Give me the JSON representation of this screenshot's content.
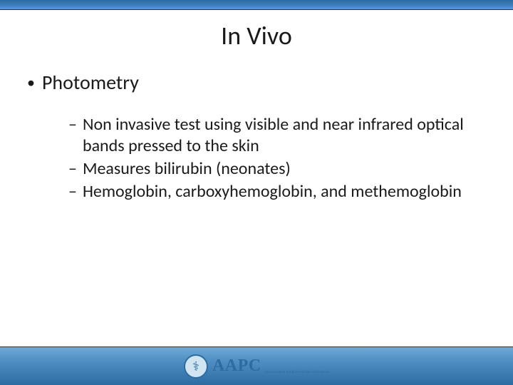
{
  "colors": {
    "bar_gradient_top": "#2d6ca2",
    "bar_gradient_bottom": "#5a9bd4",
    "text": "#1a1a1a",
    "logo_primary": "#2d6ca2",
    "background": "#ffffff"
  },
  "typography": {
    "title_fontsize": 36,
    "bullet_fontsize": 28,
    "subitem_fontsize": 24,
    "font_family": "Calibri"
  },
  "slide": {
    "title": "In Vivo",
    "bullets": [
      {
        "label": "Photometry",
        "sub": [
          "Non invasive test using visible and near infrared optical bands pressed to the skin",
          "Measures bilirubin (neonates)",
          "Hemoglobin, carboxyhemoglobin, and methemoglobin"
        ]
      }
    ]
  },
  "footer": {
    "logo_text": "AAPC",
    "logo_icon": "⚕",
    "tagline": "Understanding the Business Side of Medicine"
  }
}
